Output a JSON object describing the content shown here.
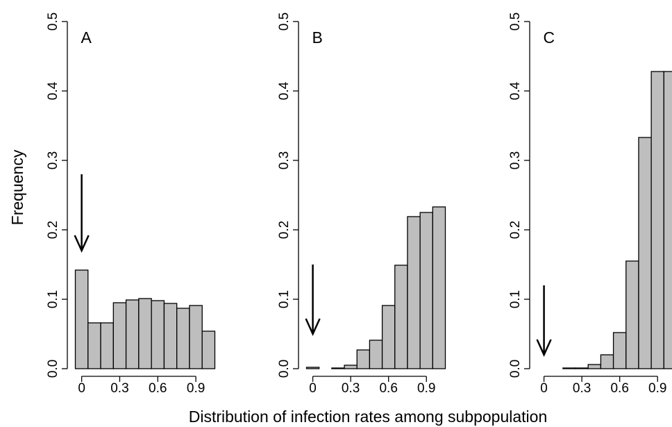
{
  "ylabel": "Frequency",
  "xlabel": "Distribution of infection rates among subpopulation",
  "colors": {
    "bar_fill": "#bebebe",
    "bar_stroke": "#000000",
    "axis": "#000000"
  },
  "chart_data": [
    {
      "type": "bar",
      "panel_label": "A",
      "bin_edges": [
        -0.05,
        0.05,
        0.15,
        0.25,
        0.35,
        0.45,
        0.55,
        0.65,
        0.75,
        0.85,
        0.95,
        1.05
      ],
      "values": [
        0.142,
        0.066,
        0.066,
        0.095,
        0.099,
        0.101,
        0.098,
        0.094,
        0.087,
        0.091,
        0.054
      ],
      "x_ticks": [
        0,
        0.3,
        0.6,
        0.9
      ],
      "x_tick_labels": [
        "0",
        "0.3",
        "0.6",
        "0.9"
      ],
      "y_ticks": [
        0,
        0.1,
        0.2,
        0.3,
        0.4,
        0.5
      ],
      "y_tick_labels": [
        "0.0",
        "0.1",
        "0.2",
        "0.3",
        "0.4",
        "0.5"
      ],
      "ylim": [
        0,
        0.5
      ],
      "xlim": [
        -0.05,
        1.05
      ],
      "arrow": {
        "x": 0,
        "y_from": 0.28,
        "y_to": 0.17
      }
    },
    {
      "type": "bar",
      "panel_label": "B",
      "bin_edges": [
        -0.05,
        0.05,
        0.15,
        0.25,
        0.35,
        0.45,
        0.55,
        0.65,
        0.75,
        0.85,
        0.95,
        1.05
      ],
      "values": [
        0.002,
        0.0,
        0.001,
        0.005,
        0.027,
        0.041,
        0.091,
        0.149,
        0.219,
        0.225,
        0.233
      ],
      "x_ticks": [
        0,
        0.3,
        0.6,
        0.9
      ],
      "x_tick_labels": [
        "0",
        "0.3",
        "0.6",
        "0.9"
      ],
      "y_ticks": [
        0,
        0.1,
        0.2,
        0.3,
        0.4,
        0.5
      ],
      "y_tick_labels": [
        "0.0",
        "0.1",
        "0.2",
        "0.3",
        "0.4",
        "0.5"
      ],
      "ylim": [
        0,
        0.5
      ],
      "xlim": [
        -0.05,
        1.05
      ],
      "arrow": {
        "x": 0,
        "y_from": 0.15,
        "y_to": 0.05
      }
    },
    {
      "type": "bar",
      "panel_label": "C",
      "bin_edges": [
        -0.05,
        0.05,
        0.15,
        0.25,
        0.35,
        0.45,
        0.55,
        0.65,
        0.75,
        0.85,
        0.95,
        1.05
      ],
      "values": [
        0.0,
        0.0,
        0.001,
        0.001,
        0.006,
        0.02,
        0.052,
        0.155,
        0.333,
        0.428,
        0.428
      ],
      "x_ticks": [
        0,
        0.3,
        0.6,
        0.9
      ],
      "x_tick_labels": [
        "0",
        "0.3",
        "0.6",
        "0.9"
      ],
      "y_ticks": [
        0,
        0.1,
        0.2,
        0.3,
        0.4,
        0.5
      ],
      "y_tick_labels": [
        "0.0",
        "0.1",
        "0.2",
        "0.3",
        "0.4",
        "0.5"
      ],
      "ylim": [
        0,
        0.5
      ],
      "xlim": [
        -0.05,
        1.05
      ],
      "arrow": {
        "x": 0,
        "y_from": 0.12,
        "y_to": 0.02
      }
    }
  ]
}
